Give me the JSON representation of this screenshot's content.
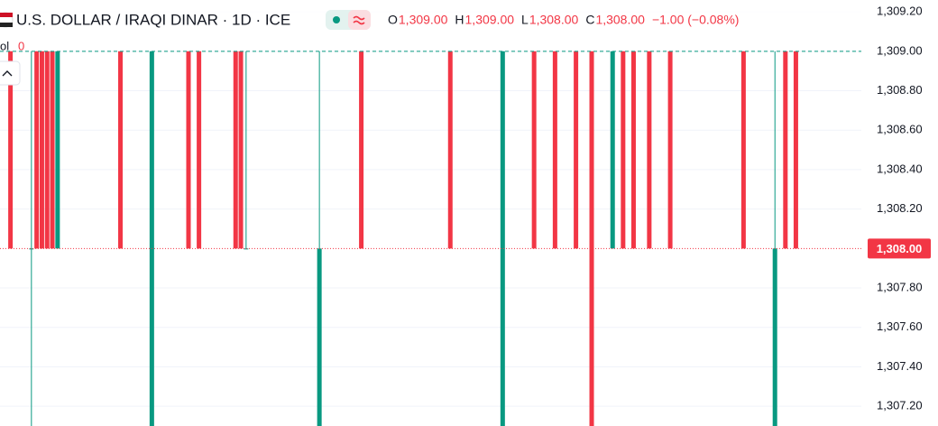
{
  "chart_data": {
    "type": "candlestick",
    "title": "U.S. DOLLAR / IRAQI DINAR · 1D · ICE",
    "legend_ohlc": [
      {
        "key": "O",
        "text": "1,309.00"
      },
      {
        "key": "H",
        "text": "1,309.00"
      },
      {
        "key": "L",
        "text": "1,308.00"
      },
      {
        "key": "C",
        "text": "1,308.00"
      }
    ],
    "change_text": "−1.00 (−0.08%)",
    "volume_label": "ol",
    "volume_value": "0",
    "up_color": "#089981",
    "down_color": "#f23645",
    "xlim": [
      -2,
      162.5
    ],
    "ylim": [
      1307.1,
      1309.26
    ],
    "yticks": [
      {
        "value": 1307.2,
        "label": "1,307.20"
      },
      {
        "value": 1307.4,
        "label": "1,307.40"
      },
      {
        "value": 1307.6,
        "label": "1,307.60"
      },
      {
        "value": 1307.8,
        "label": "1,307.80"
      },
      {
        "value": 1308.2,
        "label": "1,308.20"
      },
      {
        "value": 1308.4,
        "label": "1,308.40"
      },
      {
        "value": 1308.6,
        "label": "1,308.60"
      },
      {
        "value": 1308.8,
        "label": "1,308.80"
      },
      {
        "value": 1309.0,
        "label": "1,309.00"
      },
      {
        "value": 1309.2,
        "label": "1,309.20"
      }
    ],
    "grid": true,
    "high_line": 1309,
    "last_price": {
      "value": 1308,
      "label": "1,308.00"
    },
    "candles": [
      {
        "x": 0,
        "open": 1309,
        "high": 1309,
        "low": 1308,
        "close": 1308
      },
      {
        "x": 4,
        "open": 1308,
        "high": 1309,
        "low": 1307,
        "close": 1308
      },
      {
        "x": 5,
        "open": 1309,
        "high": 1309,
        "low": 1308,
        "close": 1308
      },
      {
        "x": 6,
        "open": 1309,
        "high": 1309,
        "low": 1308,
        "close": 1308
      },
      {
        "x": 7,
        "open": 1309,
        "high": 1309,
        "low": 1308,
        "close": 1308
      },
      {
        "x": 8,
        "open": 1309,
        "high": 1309,
        "low": 1308,
        "close": 1308
      },
      {
        "x": 9,
        "open": 1308,
        "high": 1309,
        "low": 1308,
        "close": 1309
      },
      {
        "x": 21,
        "open": 1309,
        "high": 1309,
        "low": 1308,
        "close": 1308
      },
      {
        "x": 27,
        "open": 1307,
        "high": 1309,
        "low": 1307,
        "close": 1309
      },
      {
        "x": 34,
        "open": 1309,
        "high": 1309,
        "low": 1308,
        "close": 1308
      },
      {
        "x": 36,
        "open": 1309,
        "high": 1309,
        "low": 1308,
        "close": 1308
      },
      {
        "x": 43,
        "open": 1309,
        "high": 1309,
        "low": 1308,
        "close": 1308
      },
      {
        "x": 44,
        "open": 1309,
        "high": 1309,
        "low": 1308,
        "close": 1308
      },
      {
        "x": 45,
        "open": 1308,
        "high": 1309,
        "low": 1308,
        "close": 1308
      },
      {
        "x": 59,
        "open": 1307,
        "high": 1309,
        "low": 1307,
        "close": 1308
      },
      {
        "x": 67,
        "open": 1309,
        "high": 1309,
        "low": 1308,
        "close": 1308
      },
      {
        "x": 84,
        "open": 1309,
        "high": 1309,
        "low": 1308,
        "close": 1308
      },
      {
        "x": 94,
        "open": 1307,
        "high": 1309,
        "low": 1307,
        "close": 1309
      },
      {
        "x": 100,
        "open": 1309,
        "high": 1309,
        "low": 1308,
        "close": 1308
      },
      {
        "x": 104,
        "open": 1309,
        "high": 1309,
        "low": 1308,
        "close": 1308
      },
      {
        "x": 108,
        "open": 1309,
        "high": 1309,
        "low": 1308,
        "close": 1308
      },
      {
        "x": 111,
        "open": 1309,
        "high": 1309,
        "low": 1307,
        "close": 1307
      },
      {
        "x": 115,
        "open": 1308,
        "high": 1309,
        "low": 1308,
        "close": 1309
      },
      {
        "x": 117,
        "open": 1309,
        "high": 1309,
        "low": 1308,
        "close": 1308
      },
      {
        "x": 119,
        "open": 1309,
        "high": 1309,
        "low": 1308,
        "close": 1308
      },
      {
        "x": 122,
        "open": 1309,
        "high": 1309,
        "low": 1308,
        "close": 1308
      },
      {
        "x": 126,
        "open": 1309,
        "high": 1309,
        "low": 1308,
        "close": 1308
      },
      {
        "x": 140,
        "open": 1309,
        "high": 1309,
        "low": 1308,
        "close": 1308
      },
      {
        "x": 146,
        "open": 1307,
        "high": 1309,
        "low": 1307,
        "close": 1308
      },
      {
        "x": 148,
        "open": 1309,
        "high": 1309,
        "low": 1308,
        "close": 1308
      },
      {
        "x": 150,
        "open": 1309,
        "high": 1309,
        "low": 1308,
        "close": 1308
      }
    ]
  }
}
